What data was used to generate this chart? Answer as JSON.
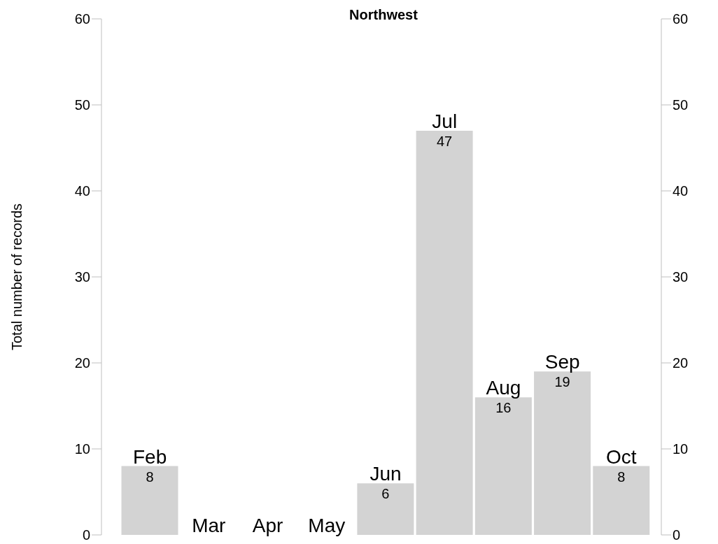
{
  "chart_data": {
    "type": "bar",
    "title": "Northwest",
    "ylabel": "Total number of records",
    "categories": [
      "Feb",
      "Mar",
      "Apr",
      "May",
      "Jun",
      "Jul",
      "Aug",
      "Sep",
      "Oct"
    ],
    "values": [
      8,
      0,
      0,
      0,
      6,
      47,
      16,
      19,
      8
    ],
    "value_labels": [
      "8",
      null,
      null,
      null,
      "6",
      "47",
      "16",
      "19",
      "8"
    ],
    "color": "#d3d3d3",
    "ylim": [
      0,
      60
    ],
    "yticks": [
      0,
      10,
      20,
      30,
      40,
      50,
      60
    ],
    "y2lim": [
      0,
      60
    ],
    "y2ticks": [
      0,
      10,
      20,
      30,
      40,
      50,
      60
    ]
  }
}
